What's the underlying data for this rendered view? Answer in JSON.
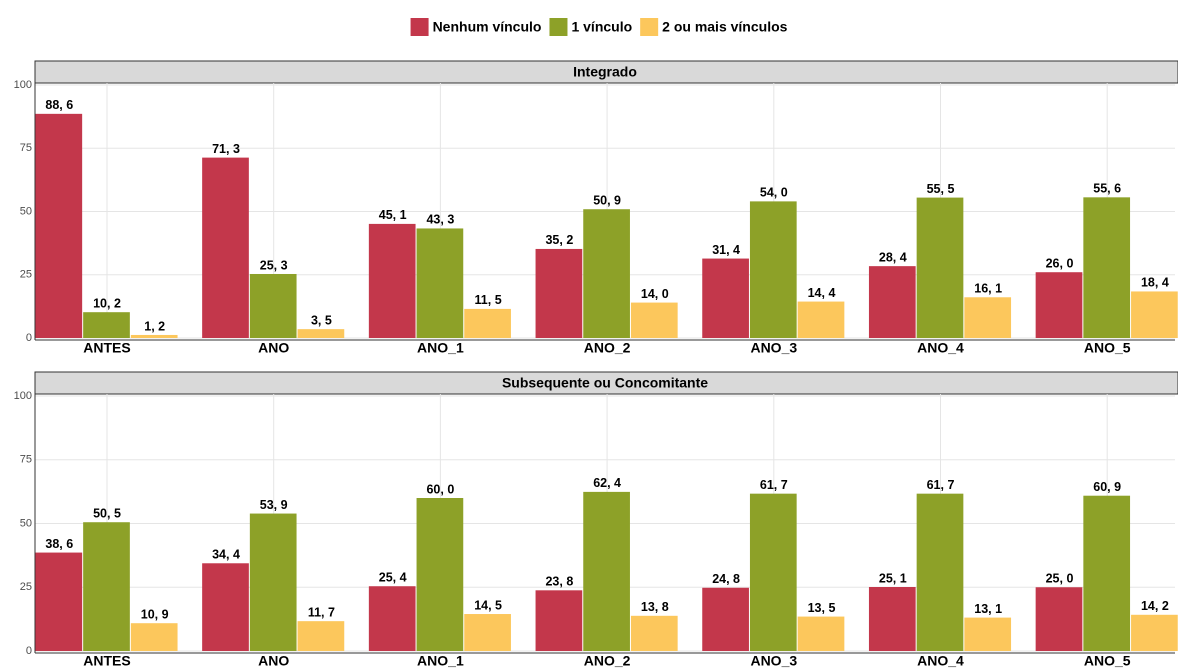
{
  "chart_data": [
    {
      "type": "bar",
      "title": "Integrado",
      "categories": [
        "ANTES",
        "ANO",
        "ANO_1",
        "ANO_2",
        "ANO_3",
        "ANO_4",
        "ANO_5"
      ],
      "series": [
        {
          "name": "Nenhum vínculo",
          "color": "#c3374b",
          "values": [
            88.6,
            71.3,
            45.1,
            35.2,
            31.4,
            28.4,
            26.0
          ],
          "value_labels": [
            "88, 6",
            "71, 3",
            "45, 1",
            "35, 2",
            "31, 4",
            "28, 4",
            "26, 0"
          ]
        },
        {
          "name": "1 vínculo",
          "color": "#8da128",
          "values": [
            10.2,
            25.3,
            43.3,
            50.9,
            54.0,
            55.5,
            55.6
          ],
          "value_labels": [
            "10, 2",
            "25, 3",
            "43, 3",
            "50, 9",
            "54, 0",
            "55, 5",
            "55, 6"
          ]
        },
        {
          "name": "2 ou mais vínculos",
          "color": "#fcc75c",
          "values": [
            1.2,
            3.5,
            11.5,
            14.0,
            14.4,
            16.1,
            18.4
          ],
          "value_labels": [
            "1, 2",
            "3, 5",
            "11, 5",
            "14, 0",
            "14, 4",
            "16, 1",
            "18, 4"
          ]
        }
      ],
      "ylim": [
        0,
        100
      ],
      "yticks": [
        0,
        25,
        50,
        75,
        100
      ],
      "grid": true
    },
    {
      "type": "bar",
      "title": "Subsequente ou Concomitante",
      "categories": [
        "ANTES",
        "ANO",
        "ANO_1",
        "ANO_2",
        "ANO_3",
        "ANO_4",
        "ANO_5"
      ],
      "series": [
        {
          "name": "Nenhum vínculo",
          "color": "#c3374b",
          "values": [
            38.6,
            34.4,
            25.4,
            23.8,
            24.8,
            25.1,
            25.0
          ],
          "value_labels": [
            "38, 6",
            "34, 4",
            "25, 4",
            "23, 8",
            "24, 8",
            "25, 1",
            "25, 0"
          ]
        },
        {
          "name": "1 vínculo",
          "color": "#8da128",
          "values": [
            50.5,
            53.9,
            60.0,
            62.4,
            61.7,
            61.7,
            60.9
          ],
          "value_labels": [
            "50, 5",
            "53, 9",
            "60, 0",
            "62, 4",
            "61, 7",
            "61, 7",
            "60, 9"
          ]
        },
        {
          "name": "2 ou mais vínculos",
          "color": "#fcc75c",
          "values": [
            10.9,
            11.7,
            14.5,
            13.8,
            13.5,
            13.1,
            14.2
          ],
          "value_labels": [
            "10, 9",
            "11, 7",
            "14, 5",
            "13, 8",
            "13, 5",
            "13, 1",
            "14, 2"
          ]
        }
      ],
      "ylim": [
        0,
        100
      ],
      "yticks": [
        0,
        25,
        50,
        75,
        100
      ],
      "grid": true
    }
  ]
}
